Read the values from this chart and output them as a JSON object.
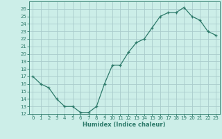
{
  "x": [
    0,
    1,
    2,
    3,
    4,
    5,
    6,
    7,
    8,
    9,
    10,
    11,
    12,
    13,
    14,
    15,
    16,
    17,
    18,
    19,
    20,
    21,
    22,
    23
  ],
  "y": [
    17.0,
    16.0,
    15.5,
    14.0,
    13.0,
    13.0,
    12.2,
    12.2,
    13.0,
    16.0,
    18.5,
    18.5,
    20.2,
    21.5,
    22.0,
    23.5,
    25.0,
    25.5,
    25.5,
    26.2,
    25.0,
    24.5,
    23.0,
    22.5
  ],
  "xlabel": "Humidex (Indice chaleur)",
  "ylim": [
    12,
    27
  ],
  "xlim": [
    -0.5,
    23.5
  ],
  "yticks": [
    12,
    13,
    14,
    15,
    16,
    17,
    18,
    19,
    20,
    21,
    22,
    23,
    24,
    25,
    26
  ],
  "xtick_labels": [
    "0",
    "1",
    "2",
    "3",
    "4",
    "5",
    "6",
    "7",
    "8",
    "9",
    "10",
    "11",
    "12",
    "13",
    "14",
    "15",
    "16",
    "17",
    "18",
    "19",
    "20",
    "21",
    "22",
    "23"
  ],
  "line_color": "#2d7a6a",
  "marker": "+",
  "bg_color": "#cceee8",
  "grid_color": "#aacccc",
  "axis_color": "#2d7a6a",
  "tick_color": "#2d7a6a",
  "label_color": "#2d7a6a",
  "tick_fontsize": 5.0,
  "xlabel_fontsize": 6.0
}
